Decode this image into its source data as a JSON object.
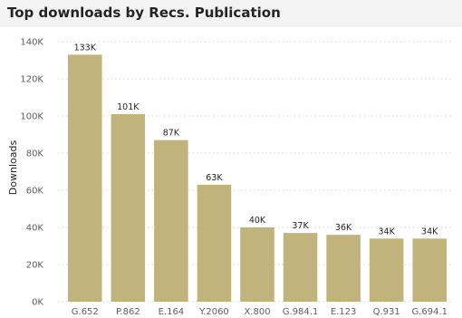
{
  "title": "Top downloads by Recs. Publication",
  "colors": {
    "bar": "#c1b37c",
    "grid": "#d2d0ce",
    "title_bg": "#f3f3f3"
  },
  "chart_data": {
    "type": "bar",
    "title": "Top downloads by Recs. Publication",
    "xlabel": "",
    "ylabel": "Downloads",
    "ylim": [
      0,
      140000
    ],
    "yticks": [
      0,
      20000,
      40000,
      60000,
      80000,
      100000,
      120000,
      140000
    ],
    "ytick_labels": [
      "0K",
      "20K",
      "40K",
      "60K",
      "80K",
      "100K",
      "120K",
      "140K"
    ],
    "grid": true,
    "categories": [
      "G.652",
      "P.862",
      "E.164",
      "Y.2060",
      "X.800",
      "G.984.1",
      "E.123",
      "Q.931",
      "G.694.1"
    ],
    "values": [
      133000,
      101000,
      87000,
      63000,
      40000,
      37000,
      36000,
      34000,
      34000
    ],
    "data_labels": [
      "133K",
      "101K",
      "87K",
      "63K",
      "40K",
      "37K",
      "36K",
      "34K",
      "34K"
    ]
  }
}
